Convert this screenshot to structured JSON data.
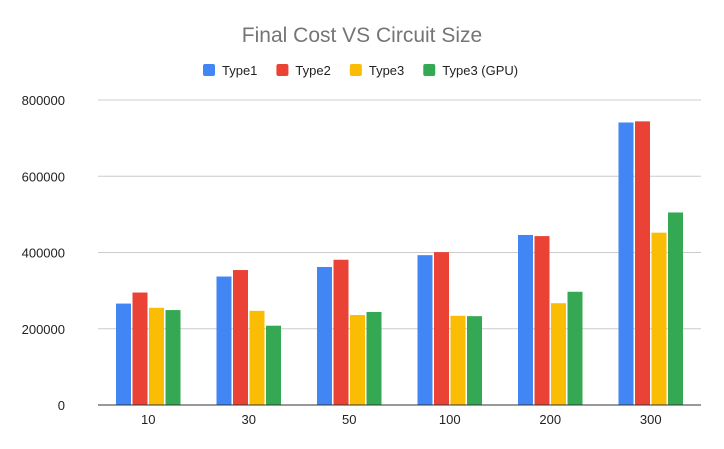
{
  "chart_data": {
    "type": "bar",
    "title": "Final Cost VS Circuit Size",
    "xlabel": "",
    "ylabel": "",
    "categories": [
      "10",
      "30",
      "50",
      "100",
      "200",
      "300"
    ],
    "series": [
      {
        "name": "Type1",
        "color": "#4285F4",
        "values": [
          266000,
          337000,
          362000,
          393000,
          446000,
          741000
        ]
      },
      {
        "name": "Type2",
        "color": "#EA4335",
        "values": [
          295000,
          354000,
          381000,
          401000,
          443000,
          744000
        ]
      },
      {
        "name": "Type3",
        "color": "#FBBC04",
        "values": [
          255000,
          247000,
          236000,
          234000,
          267000,
          452000
        ]
      },
      {
        "name": "Type3 (GPU)",
        "color": "#34A853",
        "values": [
          249000,
          208000,
          244000,
          233000,
          297000,
          505000
        ]
      }
    ],
    "ylim": [
      0,
      800000
    ],
    "yticks": [
      "0",
      "200000",
      "400000",
      "600000",
      "800000"
    ],
    "grid": true,
    "legend_position": "top"
  }
}
